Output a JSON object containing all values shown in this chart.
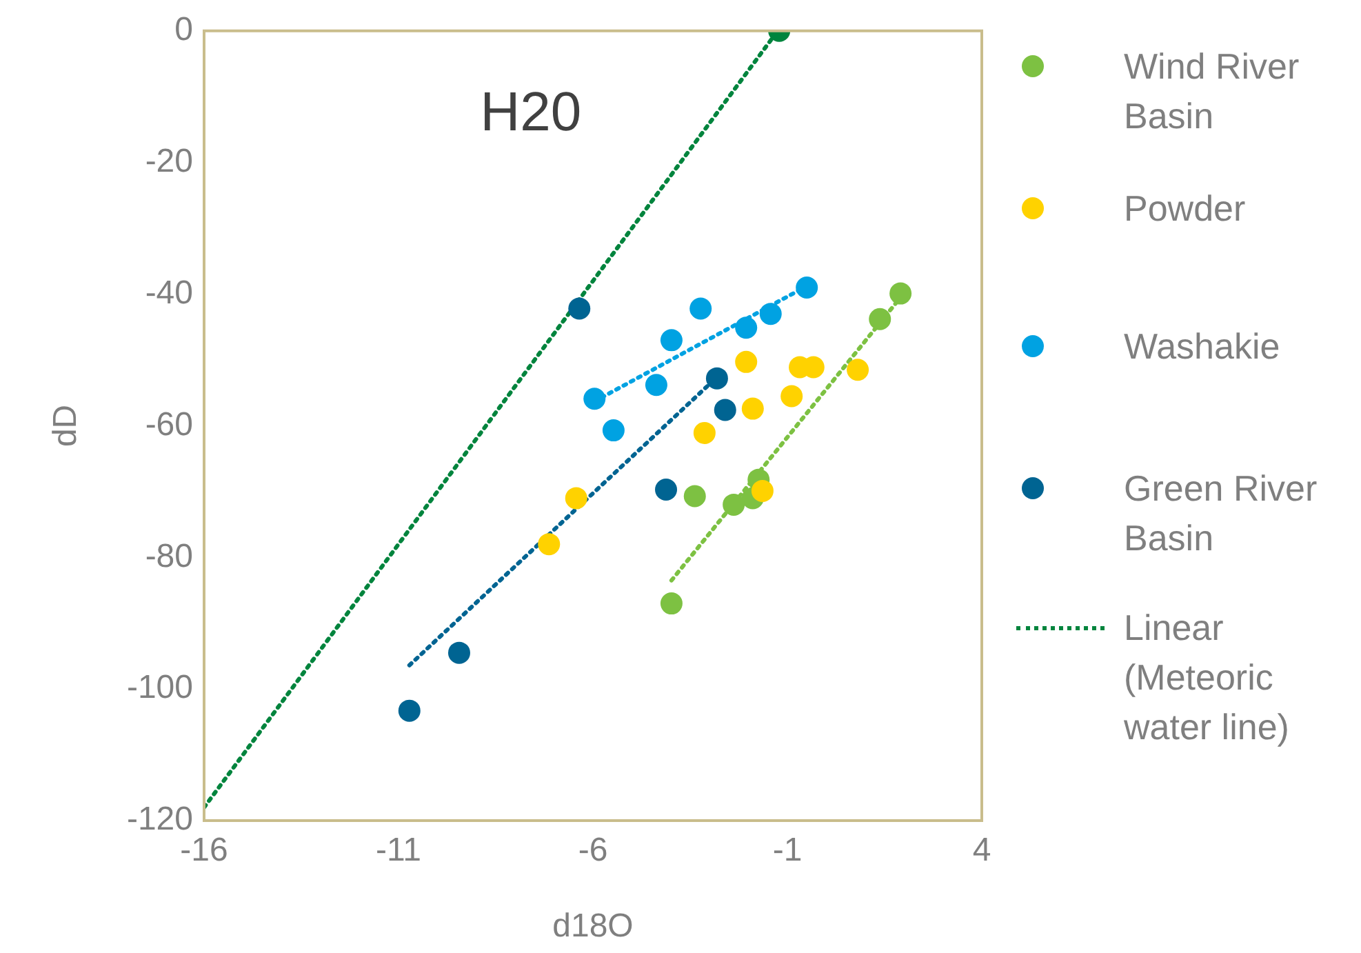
{
  "chart_data": {
    "type": "scatter",
    "xlabel": "d18O",
    "ylabel": "dD",
    "annotations": [
      "H20"
    ],
    "xlim": [
      -16,
      4
    ],
    "xticks": [
      -16,
      -11,
      -6,
      -1,
      4
    ],
    "ylim": [
      -120,
      0
    ],
    "yticks": [
      -120,
      -100,
      -80,
      -60,
      -40,
      -20,
      0
    ],
    "grid": false,
    "legend": "right",
    "series": [
      {
        "name": "Wind River Basin",
        "marker": "circle",
        "color": "#7dc142",
        "x": [
          1.91,
          1.38,
          -1.74,
          -1.89,
          -2.38,
          -3.38,
          -3.98
        ],
        "values": [
          -39.9,
          -43.8,
          -68.2,
          -71.0,
          -72.0,
          -70.7,
          -87.0
        ]
      },
      {
        "name": "Powder",
        "marker": "circle",
        "color": "#ffd200",
        "x": [
          0.81,
          -0.33,
          -0.68,
          -0.89,
          -2.06,
          -1.89,
          -3.13,
          -1.64,
          -6.43,
          -7.13
        ],
        "values": [
          -51.5,
          -51.1,
          -51.1,
          -55.5,
          -50.3,
          -57.4,
          -61.1,
          -69.9,
          -71.0,
          -78.0
        ]
      },
      {
        "name": "Washakie",
        "marker": "circle",
        "color": "#00a2e2",
        "x": [
          -0.5,
          -1.43,
          -2.06,
          -3.23,
          -3.98,
          -4.37,
          -5.96,
          -5.47
        ],
        "values": [
          -39.0,
          -43.0,
          -45.1,
          -42.2,
          -47.0,
          -53.8,
          -55.9,
          -60.7
        ]
      },
      {
        "name": "Green River Basin",
        "marker": "circle",
        "color": "#006492",
        "x": [
          -6.35,
          -2.81,
          -2.6,
          -4.12,
          -9.44,
          -10.72
        ],
        "values": [
          -42.2,
          -52.8,
          -57.6,
          -69.7,
          -94.5,
          -103.3
        ]
      },
      {
        "marker": "circle",
        "color": "#00843d",
        "x": [
          -1.21
        ],
        "values": [
          0
        ]
      },
      {
        "name": "Linear (Meteoric water line)",
        "type": "line",
        "marker": "none",
        "line_style": "dotted",
        "color": "#00843d",
        "x": [
          -16,
          -1.25
        ],
        "values": [
          -118,
          0
        ]
      },
      {
        "type": "line",
        "marker": "none",
        "line_style": "dotted",
        "color": "#7dc142",
        "x": [
          -3.98,
          1.8
        ],
        "values": [
          -83.5,
          -41.3
        ]
      },
      {
        "type": "line",
        "marker": "none",
        "line_style": "dotted",
        "color": "#00a2e2",
        "x": [
          -5.96,
          -0.57
        ],
        "values": [
          -56.3,
          -39.0
        ]
      },
      {
        "type": "line",
        "marker": "none",
        "line_style": "dotted",
        "color": "#006492",
        "x": [
          -10.72,
          -2.88
        ],
        "values": [
          -96.4,
          -53.0
        ]
      }
    ]
  }
}
